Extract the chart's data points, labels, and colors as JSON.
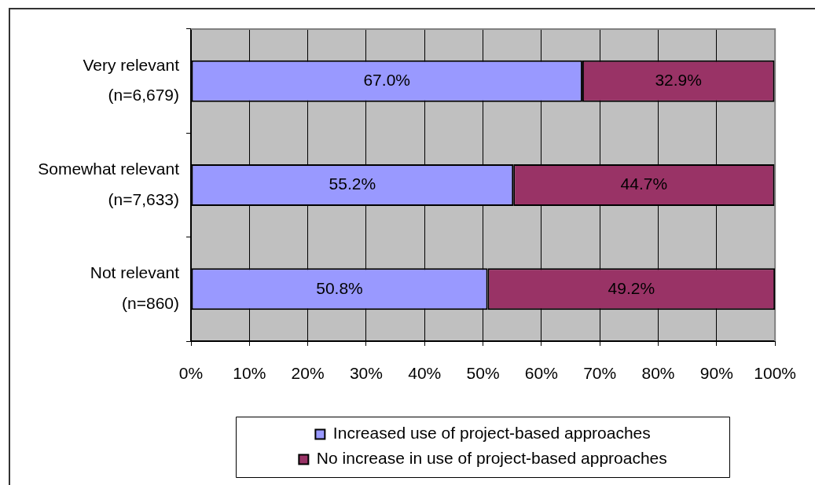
{
  "chart_data": {
    "type": "bar",
    "orientation": "horizontal",
    "stacked": true,
    "categories": [
      "Very relevant\n(n=6,679)",
      "Somewhat relevant\n(n=7,633)",
      "Not relevant\n(n=860)"
    ],
    "series": [
      {
        "name": "Increased use of project-based approaches",
        "color": "#9999ff",
        "values": [
          67.0,
          55.2,
          50.8
        ],
        "value_labels": [
          "67.0%",
          "55.2%",
          "50.8%"
        ]
      },
      {
        "name": "No increase in use of project-based approaches",
        "color": "#993366",
        "values": [
          32.9,
          44.7,
          49.2
        ],
        "value_labels": [
          "32.9%",
          "44.7%",
          "49.2%"
        ]
      }
    ],
    "xlim": [
      0,
      100
    ],
    "xticks": [
      {
        "value": 0,
        "label": "0%"
      },
      {
        "value": 10,
        "label": "10%"
      },
      {
        "value": 20,
        "label": "20%"
      },
      {
        "value": 30,
        "label": "30%"
      },
      {
        "value": 40,
        "label": "40%"
      },
      {
        "value": 50,
        "label": "50%"
      },
      {
        "value": 60,
        "label": "60%"
      },
      {
        "value": 70,
        "label": "70%"
      },
      {
        "value": 80,
        "label": "80%"
      },
      {
        "value": 90,
        "label": "90%"
      },
      {
        "value": 100,
        "label": "100%"
      }
    ],
    "grid": "x",
    "legend": "bottom"
  }
}
